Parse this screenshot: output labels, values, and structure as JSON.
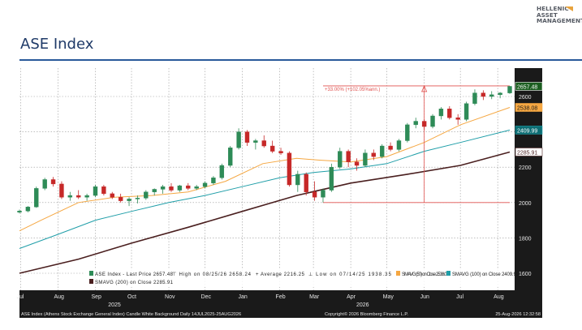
{
  "brand": {
    "lines": [
      "HELLENIC",
      "ASSET",
      "MANAGEMENT"
    ]
  },
  "page": {
    "title": "ASE Index"
  },
  "colors": {
    "price_up": "#2e8b57",
    "price_down": "#c62828",
    "sma50": "#f5a742",
    "sma100": "#1f9ea8",
    "sma200": "#4a1f1f",
    "annotation": "#e0524f",
    "frame": "#1a1a1a"
  },
  "footer": {
    "left": "ASE Index (Athens Stock Exchange General Index) Candle White Background Daily 14JUL2025-25AUG2026",
    "center": "Copyright© 2026 Bloomberg Finance L.P.",
    "right": "25-Aug-2026 12:32:58"
  },
  "chart_data": {
    "type": "candlestick",
    "title": "",
    "xlabel": "",
    "ylabel": "",
    "x_range": [
      "2025-07-14",
      "2026-08-25"
    ],
    "ylim": [
      1560,
      2700
    ],
    "grid": true,
    "legend_placement": "bottom",
    "y_ticks": [
      1600,
      1800,
      2000,
      2200,
      2400,
      2600
    ],
    "x_ticks": [
      {
        "date": "2025-07-15",
        "label": "Jul"
      },
      {
        "date": "2025-08-15",
        "label": "Aug"
      },
      {
        "date": "2025-09-15",
        "label": "Sep"
      },
      {
        "date": "2025-10-15",
        "label": "Oct"
      },
      {
        "date": "2025-11-15",
        "label": "Nov"
      },
      {
        "date": "2025-12-15",
        "label": "Dec"
      },
      {
        "date": "2026-01-15",
        "label": "Jan"
      },
      {
        "date": "2026-02-15",
        "label": "Feb"
      },
      {
        "date": "2026-03-15",
        "label": "Mar"
      },
      {
        "date": "2026-04-15",
        "label": "Apr"
      },
      {
        "date": "2026-05-15",
        "label": "May"
      },
      {
        "date": "2026-06-15",
        "label": "Jun"
      },
      {
        "date": "2026-07-15",
        "label": "Jul"
      },
      {
        "date": "2026-08-15",
        "label": "Aug"
      }
    ],
    "year_labels": [
      {
        "date": "2025-10-01",
        "label": "2025"
      },
      {
        "date": "2026-04-25",
        "label": "2026"
      }
    ],
    "last_values": [
      {
        "label": "2657.48",
        "value": 2657.48,
        "series": "price"
      },
      {
        "label": "2538.08",
        "value": 2538.08,
        "series": "sma50"
      },
      {
        "label": "2409.99",
        "value": 2409.99,
        "series": "sma100"
      },
      {
        "label": "2285.91",
        "value": 2285.91,
        "series": "sma200"
      }
    ],
    "legend": [
      {
        "swatch": "price",
        "text": "ASE Index - Last Price  2657.48"
      },
      {
        "swatch": "none",
        "text": "⊤ High on 08/25/26  2658.24"
      },
      {
        "swatch": "none",
        "text": "+ Average  2216.25"
      },
      {
        "swatch": "none",
        "text": "⊥ Low on 07/14/25  1938.35"
      },
      {
        "swatch": "sma50",
        "text": "SMAVG (50)  on Close 2538.08"
      },
      {
        "swatch": "sma100",
        "text": "SMAVG (100)  on Close 2409.99"
      },
      {
        "swatch": "sma200",
        "text": "SMAVG (200)  on Close 2285.91"
      }
    ],
    "annotation": {
      "text": "+33.00% (+102.05%ann.)",
      "from_date": "2026-03-23",
      "from_value": 2000,
      "to_date": "2026-08-25",
      "to_value": 2660,
      "mid_date": "2026-06-15"
    },
    "candles": [
      {
        "date": "2025-07-14",
        "open": 1945,
        "high": 1960,
        "low": 1938,
        "close": 1952
      },
      {
        "date": "2025-07-21",
        "open": 1952,
        "high": 1980,
        "low": 1945,
        "close": 1975
      },
      {
        "date": "2025-07-28",
        "open": 1975,
        "high": 2090,
        "low": 1970,
        "close": 2080
      },
      {
        "date": "2025-08-04",
        "open": 2080,
        "high": 2140,
        "low": 2070,
        "close": 2130
      },
      {
        "date": "2025-08-11",
        "open": 2130,
        "high": 2145,
        "low": 2090,
        "close": 2105
      },
      {
        "date": "2025-08-18",
        "open": 2105,
        "high": 2120,
        "low": 2020,
        "close": 2030
      },
      {
        "date": "2025-08-25",
        "open": 2030,
        "high": 2060,
        "low": 2010,
        "close": 2040
      },
      {
        "date": "2025-09-01",
        "open": 2040,
        "high": 2070,
        "low": 2020,
        "close": 2030
      },
      {
        "date": "2025-09-08",
        "open": 2030,
        "high": 2050,
        "low": 2010,
        "close": 2040
      },
      {
        "date": "2025-09-15",
        "open": 2040,
        "high": 2100,
        "low": 2030,
        "close": 2090
      },
      {
        "date": "2025-09-22",
        "open": 2090,
        "high": 2100,
        "low": 2040,
        "close": 2050
      },
      {
        "date": "2025-09-29",
        "open": 2050,
        "high": 2060,
        "low": 2020,
        "close": 2030
      },
      {
        "date": "2025-10-06",
        "open": 2030,
        "high": 2050,
        "low": 2000,
        "close": 2010
      },
      {
        "date": "2025-10-13",
        "open": 2010,
        "high": 2030,
        "low": 1980,
        "close": 2020
      },
      {
        "date": "2025-10-20",
        "open": 2020,
        "high": 2040,
        "low": 1995,
        "close": 2025
      },
      {
        "date": "2025-10-27",
        "open": 2025,
        "high": 2070,
        "low": 2015,
        "close": 2060
      },
      {
        "date": "2025-11-03",
        "open": 2060,
        "high": 2080,
        "low": 2040,
        "close": 2075
      },
      {
        "date": "2025-11-10",
        "open": 2075,
        "high": 2100,
        "low": 2050,
        "close": 2090
      },
      {
        "date": "2025-11-17",
        "open": 2090,
        "high": 2110,
        "low": 2060,
        "close": 2070
      },
      {
        "date": "2025-11-24",
        "open": 2070,
        "high": 2100,
        "low": 2060,
        "close": 2095
      },
      {
        "date": "2025-12-01",
        "open": 2095,
        "high": 2110,
        "low": 2070,
        "close": 2080
      },
      {
        "date": "2025-12-08",
        "open": 2080,
        "high": 2100,
        "low": 2070,
        "close": 2090
      },
      {
        "date": "2025-12-15",
        "open": 2090,
        "high": 2120,
        "low": 2080,
        "close": 2110
      },
      {
        "date": "2025-12-22",
        "open": 2110,
        "high": 2150,
        "low": 2100,
        "close": 2140
      },
      {
        "date": "2025-12-29",
        "open": 2140,
        "high": 2220,
        "low": 2130,
        "close": 2210
      },
      {
        "date": "2026-01-05",
        "open": 2210,
        "high": 2320,
        "low": 2200,
        "close": 2310
      },
      {
        "date": "2026-01-12",
        "open": 2310,
        "high": 2420,
        "low": 2300,
        "close": 2400
      },
      {
        "date": "2026-01-19",
        "open": 2400,
        "high": 2410,
        "low": 2320,
        "close": 2340
      },
      {
        "date": "2026-01-26",
        "open": 2340,
        "high": 2360,
        "low": 2300,
        "close": 2350
      },
      {
        "date": "2026-02-02",
        "open": 2350,
        "high": 2380,
        "low": 2310,
        "close": 2320
      },
      {
        "date": "2026-02-09",
        "open": 2320,
        "high": 2350,
        "low": 2280,
        "close": 2290
      },
      {
        "date": "2026-02-16",
        "open": 2290,
        "high": 2310,
        "low": 2270,
        "close": 2280
      },
      {
        "date": "2026-02-23",
        "open": 2280,
        "high": 2290,
        "low": 2090,
        "close": 2100
      },
      {
        "date": "2026-03-02",
        "open": 2100,
        "high": 2180,
        "low": 2060,
        "close": 2160
      },
      {
        "date": "2026-03-09",
        "open": 2160,
        "high": 2170,
        "low": 2040,
        "close": 2060
      },
      {
        "date": "2026-03-16",
        "open": 2060,
        "high": 2120,
        "low": 2010,
        "close": 2030
      },
      {
        "date": "2026-03-23",
        "open": 2030,
        "high": 2080,
        "low": 2000,
        "close": 2070
      },
      {
        "date": "2026-03-30",
        "open": 2070,
        "high": 2220,
        "low": 2060,
        "close": 2200
      },
      {
        "date": "2026-04-06",
        "open": 2200,
        "high": 2310,
        "low": 2190,
        "close": 2290
      },
      {
        "date": "2026-04-13",
        "open": 2290,
        "high": 2300,
        "low": 2200,
        "close": 2230
      },
      {
        "date": "2026-04-20",
        "open": 2230,
        "high": 2250,
        "low": 2180,
        "close": 2210
      },
      {
        "date": "2026-04-27",
        "open": 2210,
        "high": 2300,
        "low": 2200,
        "close": 2280
      },
      {
        "date": "2026-05-04",
        "open": 2280,
        "high": 2300,
        "low": 2240,
        "close": 2260
      },
      {
        "date": "2026-05-11",
        "open": 2260,
        "high": 2330,
        "low": 2250,
        "close": 2320
      },
      {
        "date": "2026-05-18",
        "open": 2320,
        "high": 2340,
        "low": 2290,
        "close": 2300
      },
      {
        "date": "2026-05-25",
        "open": 2300,
        "high": 2360,
        "low": 2290,
        "close": 2350
      },
      {
        "date": "2026-06-01",
        "open": 2350,
        "high": 2450,
        "low": 2340,
        "close": 2440
      },
      {
        "date": "2026-06-08",
        "open": 2440,
        "high": 2480,
        "low": 2420,
        "close": 2460
      },
      {
        "date": "2026-06-15",
        "open": 2460,
        "high": 2470,
        "low": 2410,
        "close": 2430
      },
      {
        "date": "2026-06-22",
        "open": 2430,
        "high": 2500,
        "low": 2420,
        "close": 2490
      },
      {
        "date": "2026-06-29",
        "open": 2490,
        "high": 2540,
        "low": 2470,
        "close": 2530
      },
      {
        "date": "2026-07-06",
        "open": 2530,
        "high": 2545,
        "low": 2470,
        "close": 2480
      },
      {
        "date": "2026-07-13",
        "open": 2480,
        "high": 2500,
        "low": 2440,
        "close": 2470
      },
      {
        "date": "2026-07-20",
        "open": 2470,
        "high": 2570,
        "low": 2460,
        "close": 2560
      },
      {
        "date": "2026-07-27",
        "open": 2560,
        "high": 2640,
        "low": 2550,
        "close": 2620
      },
      {
        "date": "2026-08-03",
        "open": 2620,
        "high": 2635,
        "low": 2580,
        "close": 2600
      },
      {
        "date": "2026-08-10",
        "open": 2600,
        "high": 2630,
        "low": 2585,
        "close": 2610
      },
      {
        "date": "2026-08-17",
        "open": 2610,
        "high": 2625,
        "low": 2590,
        "close": 2620
      },
      {
        "date": "2026-08-25",
        "open": 2620,
        "high": 2658.24,
        "low": 2615,
        "close": 2657.48
      }
    ],
    "series": [
      {
        "key": "sma50",
        "name": "SMAVG (50)",
        "points": [
          [
            "2025-07-14",
            1840
          ],
          [
            "2025-08-01",
            1900
          ],
          [
            "2025-09-01",
            2000
          ],
          [
            "2025-10-01",
            2030
          ],
          [
            "2025-11-01",
            2040
          ],
          [
            "2025-12-01",
            2060
          ],
          [
            "2026-01-01",
            2120
          ],
          [
            "2026-02-01",
            2220
          ],
          [
            "2026-03-01",
            2250
          ],
          [
            "2026-03-20",
            2240
          ],
          [
            "2026-04-15",
            2230
          ],
          [
            "2026-05-15",
            2260
          ],
          [
            "2026-06-15",
            2340
          ],
          [
            "2026-07-15",
            2440
          ],
          [
            "2026-08-25",
            2538.08
          ]
        ]
      },
      {
        "key": "sma100",
        "name": "SMAVG (100)",
        "points": [
          [
            "2025-07-14",
            1740
          ],
          [
            "2025-08-15",
            1820
          ],
          [
            "2025-09-15",
            1900
          ],
          [
            "2025-10-15",
            1950
          ],
          [
            "2025-11-15",
            2000
          ],
          [
            "2025-12-15",
            2040
          ],
          [
            "2026-01-15",
            2090
          ],
          [
            "2026-02-15",
            2140
          ],
          [
            "2026-03-15",
            2170
          ],
          [
            "2026-04-15",
            2190
          ],
          [
            "2026-05-15",
            2220
          ],
          [
            "2026-06-15",
            2290
          ],
          [
            "2026-07-15",
            2340
          ],
          [
            "2026-08-25",
            2409.99
          ]
        ]
      },
      {
        "key": "sma200",
        "name": "SMAVG (200)",
        "points": [
          [
            "2025-07-14",
            1600
          ],
          [
            "2025-09-01",
            1680
          ],
          [
            "2025-10-15",
            1770
          ],
          [
            "2025-12-01",
            1860
          ],
          [
            "2026-01-15",
            1950
          ],
          [
            "2026-03-01",
            2040
          ],
          [
            "2026-04-15",
            2110
          ],
          [
            "2026-06-01",
            2160
          ],
          [
            "2026-07-15",
            2210
          ],
          [
            "2026-08-25",
            2285.91
          ]
        ]
      }
    ]
  }
}
